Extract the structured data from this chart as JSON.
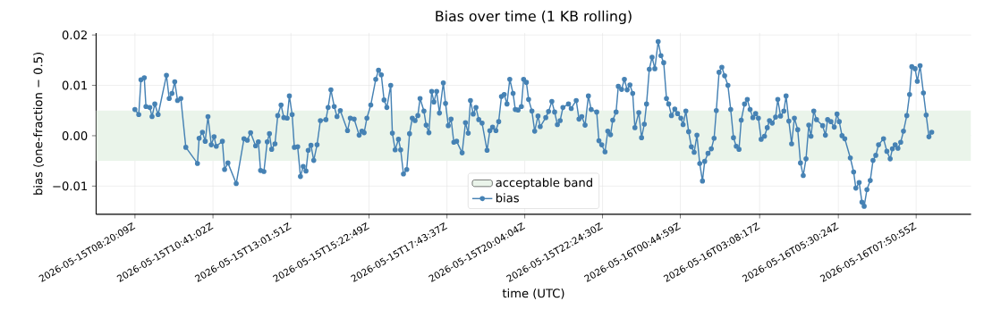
{
  "chart_data": {
    "type": "line",
    "title": "Bias over time (1 KB rolling)",
    "xlabel": "time (UTC)",
    "ylabel": "bias (one-fraction − 0.5)",
    "x": [
      "2026-05-15T08:20",
      "2026-05-15T08:27",
      "2026-05-15T08:31",
      "2026-05-15T08:37",
      "2026-05-15T08:40",
      "2026-05-15T08:47",
      "2026-05-15T08:51",
      "2026-05-15T08:56",
      "2026-05-15T09:02",
      "2026-05-15T09:17",
      "2026-05-15T09:22",
      "2026-05-15T09:27",
      "2026-05-15T09:32",
      "2026-05-15T09:37",
      "2026-05-15T09:43",
      "2026-05-15T09:52",
      "2026-05-15T10:13",
      "2026-05-15T10:16",
      "2026-05-15T10:22",
      "2026-05-15T10:27",
      "2026-05-15T10:32",
      "2026-05-15T10:38",
      "2026-05-15T10:43",
      "2026-05-15T10:47",
      "2026-05-15T10:58",
      "2026-05-15T11:02",
      "2026-05-15T11:08",
      "2026-05-15T11:23",
      "2026-05-15T11:37",
      "2026-05-15T11:43",
      "2026-05-15T11:49",
      "2026-05-15T11:58",
      "2026-05-15T12:03",
      "2026-05-15T12:07",
      "2026-05-15T12:13",
      "2026-05-15T12:19",
      "2026-05-15T12:23",
      "2026-05-15T12:27",
      "2026-05-15T12:33",
      "2026-05-15T12:38",
      "2026-05-15T12:44",
      "2026-05-15T12:49",
      "2026-05-15T12:55",
      "2026-05-15T12:59",
      "2026-05-15T13:04",
      "2026-05-15T13:08",
      "2026-05-15T13:14",
      "2026-05-15T13:19",
      "2026-05-15T13:24",
      "2026-05-15T13:29",
      "2026-05-15T13:33",
      "2026-05-15T13:38",
      "2026-05-15T13:43",
      "2026-05-15T13:49",
      "2026-05-15T13:55",
      "2026-05-15T14:05",
      "2026-05-15T14:09",
      "2026-05-15T14:14",
      "2026-05-15T14:20",
      "2026-05-15T14:25",
      "2026-05-15T14:31",
      "2026-05-15T14:44",
      "2026-05-15T14:49",
      "2026-05-15T14:56",
      "2026-05-15T15:05",
      "2026-05-15T15:10",
      "2026-05-15T15:14",
      "2026-05-15T15:19",
      "2026-05-15T15:26",
      "2026-05-15T15:35",
      "2026-05-15T15:40",
      "2026-05-15T15:45",
      "2026-05-15T15:50",
      "2026-05-15T15:55",
      "2026-05-15T16:02",
      "2026-05-15T16:05",
      "2026-05-15T16:10",
      "2026-05-15T16:16",
      "2026-05-15T16:20",
      "2026-05-15T16:25",
      "2026-05-15T16:31",
      "2026-05-15T16:36",
      "2026-05-15T16:41",
      "2026-05-15T16:46",
      "2026-05-15T16:51",
      "2026-05-15T16:55",
      "2026-05-15T17:02",
      "2026-05-15T17:06",
      "2026-05-15T17:11",
      "2026-05-15T17:16",
      "2026-05-15T17:20",
      "2026-05-15T17:25",
      "2026-05-15T17:30",
      "2026-05-15T17:37",
      "2026-05-15T17:41",
      "2026-05-15T17:46",
      "2026-05-15T17:51",
      "2026-05-15T17:56",
      "2026-05-15T18:01",
      "2026-05-15T18:11",
      "2026-05-15T18:17",
      "2026-05-15T18:22",
      "2026-05-15T18:26",
      "2026-05-15T18:31",
      "2026-05-15T18:36",
      "2026-05-15T18:41",
      "2026-05-15T18:47",
      "2026-05-15T18:56",
      "2026-05-15T19:01",
      "2026-05-15T19:06",
      "2026-05-15T19:12",
      "2026-05-15T19:17",
      "2026-05-15T19:22",
      "2026-05-15T19:27",
      "2026-05-15T19:32",
      "2026-05-15T19:37",
      "2026-05-15T19:43",
      "2026-05-15T19:47",
      "2026-05-15T19:52",
      "2026-05-15T19:58",
      "2026-05-15T20:02",
      "2026-05-15T20:07",
      "2026-05-15T20:11",
      "2026-05-15T20:17",
      "2026-05-15T20:22",
      "2026-05-15T20:28",
      "2026-05-15T20:32",
      "2026-05-15T20:42",
      "2026-05-15T20:47",
      "2026-05-15T20:53",
      "2026-05-15T20:58",
      "2026-05-15T21:03",
      "2026-05-15T21:08",
      "2026-05-15T21:13",
      "2026-05-15T21:23",
      "2026-05-15T21:28",
      "2026-05-15T21:37",
      "2026-05-15T21:42",
      "2026-05-15T21:47",
      "2026-05-15T21:53",
      "2026-05-15T21:59",
      "2026-05-15T22:04",
      "2026-05-15T22:14",
      "2026-05-15T22:18",
      "2026-05-15T22:23",
      "2026-05-15T22:29",
      "2026-05-15T22:34",
      "2026-05-15T22:39",
      "2026-05-15T22:43",
      "2026-05-15T22:49",
      "2026-05-15T22:53",
      "2026-05-15T22:59",
      "2026-05-15T23:04",
      "2026-05-15T23:09",
      "2026-05-15T23:14",
      "2026-05-15T23:19",
      "2026-05-15T23:23",
      "2026-05-15T23:30",
      "2026-05-15T23:35",
      "2026-05-15T23:40",
      "2026-05-15T23:44",
      "2026-05-15T23:49",
      "2026-05-15T23:54",
      "2026-05-15T23:59",
      "2026-05-16T00:05",
      "2026-05-16T00:10",
      "2026-05-16T00:15",
      "2026-05-16T00:20",
      "2026-05-16T00:24",
      "2026-05-16T00:29",
      "2026-05-16T00:35",
      "2026-05-16T00:40",
      "2026-05-16T00:46",
      "2026-05-16T00:50",
      "2026-05-16T00:55",
      "2026-05-16T01:00",
      "2026-05-16T01:05",
      "2026-05-16T01:10",
      "2026-05-16T01:15",
      "2026-05-16T01:20",
      "2026-05-16T01:25",
      "2026-05-16T01:29",
      "2026-05-16T01:35",
      "2026-05-16T01:41",
      "2026-05-16T01:46",
      "2026-05-16T01:50",
      "2026-05-16T01:55",
      "2026-05-16T02:00",
      "2026-05-16T02:05",
      "2026-05-16T02:11",
      "2026-05-16T02:16",
      "2026-05-16T02:21",
      "2026-05-16T02:26",
      "2026-05-16T02:31",
      "2026-05-16T02:35",
      "2026-05-16T02:41",
      "2026-05-16T02:46",
      "2026-05-16T02:51",
      "2026-05-16T02:56",
      "2026-05-16T03:01",
      "2026-05-16T03:06",
      "2026-05-16T03:11",
      "2026-05-16T03:17",
      "2026-05-16T03:22",
      "2026-05-16T03:26",
      "2026-05-16T03:31",
      "2026-05-16T03:37",
      "2026-05-16T03:41",
      "2026-05-16T03:46",
      "2026-05-16T03:52",
      "2026-05-16T03:56",
      "2026-05-16T04:01",
      "2026-05-16T04:06",
      "2026-05-16T04:11",
      "2026-05-16T04:17",
      "2026-05-16T04:22",
      "2026-05-16T04:27",
      "2026-05-16T04:32",
      "2026-05-16T04:37",
      "2026-05-16T04:41",
      "2026-05-16T04:46",
      "2026-05-16T04:51",
      "2026-05-16T05:02",
      "2026-05-16T05:07",
      "2026-05-16T05:11",
      "2026-05-16T05:17",
      "2026-05-16T05:23",
      "2026-05-16T05:28",
      "2026-05-16T05:32",
      "2026-05-16T05:37",
      "2026-05-16T05:42",
      "2026-05-16T05:52",
      "2026-05-16T05:58",
      "2026-05-16T06:02",
      "2026-05-16T06:08",
      "2026-05-16T06:13",
      "2026-05-16T06:17",
      "2026-05-16T06:22",
      "2026-05-16T06:28",
      "2026-05-16T06:33",
      "2026-05-16T06:38",
      "2026-05-16T06:43",
      "2026-05-16T06:52",
      "2026-05-16T06:58",
      "2026-05-16T07:04",
      "2026-05-16T07:08",
      "2026-05-16T07:13",
      "2026-05-16T07:18",
      "2026-05-16T07:23",
      "2026-05-16T07:28",
      "2026-05-16T07:34",
      "2026-05-16T07:39",
      "2026-05-16T07:43",
      "2026-05-16T07:49",
      "2026-05-16T07:53",
      "2026-05-16T07:58",
      "2026-05-16T08:04",
      "2026-05-16T08:09",
      "2026-05-16T08:14",
      "2026-05-16T08:19"
    ],
    "series": [
      {
        "name": "bias",
        "color": "#4682b4",
        "values": [
          0.0052,
          0.0042,
          0.0111,
          0.0115,
          0.0058,
          0.0056,
          0.0038,
          0.0063,
          0.0042,
          0.012,
          0.0074,
          0.0084,
          0.0107,
          0.007,
          0.0074,
          -0.0023,
          -0.0055,
          -0.0005,
          0.0007,
          -0.0011,
          0.0038,
          -0.0018,
          -0.0002,
          -0.0021,
          -0.0011,
          -0.0067,
          -0.0054,
          -0.0095,
          -0.0006,
          -0.0009,
          0.0006,
          -0.002,
          -0.0012,
          -0.0069,
          -0.0071,
          -0.0012,
          0.0004,
          -0.0027,
          -0.0016,
          0.004,
          0.0061,
          0.0036,
          0.0035,
          0.0079,
          0.0042,
          -0.0023,
          -0.0022,
          -0.0081,
          -0.0061,
          -0.007,
          -0.0029,
          -0.0019,
          -0.0049,
          -0.0018,
          0.003,
          0.0032,
          0.0056,
          0.0091,
          0.0058,
          0.0038,
          0.005,
          0.001,
          0.0035,
          0.0033,
          0.0001,
          0.0009,
          0.0006,
          0.0035,
          0.0061,
          0.0112,
          0.013,
          0.0121,
          0.0071,
          0.0056,
          0.01,
          0.0005,
          -0.0028,
          -0.0007,
          -0.0028,
          -0.0076,
          -0.0067,
          0.0004,
          0.0035,
          0.003,
          0.004,
          0.0074,
          0.0049,
          0.0021,
          0.0006,
          0.0088,
          0.0067,
          0.0088,
          0.0045,
          0.0105,
          0.0064,
          0.002,
          0.0033,
          -0.0013,
          -0.0011,
          -0.0034,
          0.0026,
          0.0005,
          0.007,
          0.0043,
          0.0056,
          0.0032,
          0.0025,
          -0.0029,
          0.001,
          0.0017,
          0.001,
          0.0028,
          0.0078,
          0.0082,
          0.0063,
          0.0112,
          0.0084,
          0.0052,
          0.0051,
          0.0058,
          0.0112,
          0.0106,
          0.0072,
          0.0049,
          0.0009,
          0.0039,
          0.0018,
          0.0036,
          0.0048,
          0.0068,
          0.0047,
          0.0022,
          0.003,
          0.0056,
          0.0063,
          0.0054,
          0.007,
          0.0033,
          0.0038,
          0.0021,
          0.0079,
          0.0052,
          0.0047,
          -0.001,
          -0.0018,
          -0.0032,
          0.0009,
          0.0002,
          0.0031,
          0.0047,
          0.0098,
          0.0092,
          0.0112,
          0.0091,
          0.0101,
          0.0084,
          0.0016,
          0.0046,
          -0.0004,
          0.0023,
          0.0063,
          0.0132,
          0.0156,
          0.0133,
          0.0187,
          0.0159,
          0.0145,
          0.0074,
          0.0063,
          0.004,
          0.0053,
          0.0044,
          0.0035,
          0.0022,
          0.0049,
          0.0008,
          -0.0022,
          -0.0033,
          0.0001,
          -0.0055,
          -0.009,
          -0.0051,
          -0.0035,
          -0.0026,
          -0.0005,
          0.005,
          0.0126,
          0.0136,
          0.0119,
          0.01,
          0.0052,
          -0.0004,
          -0.0021,
          -0.0027,
          0.0031,
          0.0063,
          0.0072,
          0.0052,
          0.0036,
          0.0044,
          0.0035,
          -0.0007,
          -0.0001,
          0.0016,
          0.003,
          0.0025,
          0.0037,
          0.0072,
          0.0039,
          0.0049,
          0.0079,
          0.0029,
          -0.0016,
          0.0035,
          0.0012,
          -0.0054,
          -0.0079,
          -0.0046,
          0.0021,
          -0.0001,
          0.0049,
          0.0032,
          0.002,
          0.0001,
          0.0032,
          0.0028,
          0.0017,
          0.0043,
          0.0028,
          0.0,
          -0.0006,
          -0.0044,
          -0.0072,
          -0.0104,
          -0.0093,
          -0.0132,
          -0.014,
          -0.0107,
          -0.0089,
          -0.0049,
          -0.0039,
          -0.0018,
          -0.0006,
          -0.0031,
          -0.0046,
          -0.0026,
          -0.0018,
          -0.0025,
          -0.0013,
          0.0009,
          0.004,
          0.0082,
          0.0137,
          0.0133,
          0.0108,
          0.0139,
          0.0085,
          0.0041,
          -0.0002,
          0.0007
        ]
      }
    ],
    "xlim": [
      "2026-05-15T07:10",
      "2026-05-16T09:30"
    ],
    "ylim": [
      -0.0156,
      0.0204
    ],
    "xticks": [
      {
        "value": "2026-05-15T08:20:09",
        "label": "2026-05-15T08:20:09Z"
      },
      {
        "value": "2026-05-15T10:41:02",
        "label": "2026-05-15T10:41:02Z"
      },
      {
        "value": "2026-05-15T13:01:51",
        "label": "2026-05-15T13:01:51Z"
      },
      {
        "value": "2026-05-15T15:22:49",
        "label": "2026-05-15T15:22:49Z"
      },
      {
        "value": "2026-05-15T17:43:37",
        "label": "2026-05-15T17:43:37Z"
      },
      {
        "value": "2026-05-15T20:04:04",
        "label": "2026-05-15T20:04:04Z"
      },
      {
        "value": "2026-05-15T22:24:30",
        "label": "2026-05-15T22:24:30Z"
      },
      {
        "value": "2026-05-16T00:44:59",
        "label": "2026-05-16T00:44:59Z"
      },
      {
        "value": "2026-05-16T03:08:17",
        "label": "2026-05-16T03:08:17Z"
      },
      {
        "value": "2026-05-16T05:30:24",
        "label": "2026-05-16T05:30:24Z"
      },
      {
        "value": "2026-05-16T07:50:55",
        "label": "2026-05-16T07:50:55Z"
      }
    ],
    "yticks": [
      {
        "value": -0.01,
        "label": "−0.01"
      },
      {
        "value": 0,
        "label": "0.00"
      },
      {
        "value": 0.01,
        "label": "0.01"
      },
      {
        "value": 0.02,
        "label": "0.02"
      }
    ],
    "bands": [
      {
        "axis": "y",
        "from": -0.005,
        "to": 0.005,
        "label": "acceptable band",
        "color": "#eaf4ea"
      }
    ],
    "grid": true,
    "legend": "bottom",
    "marker": "circle"
  }
}
